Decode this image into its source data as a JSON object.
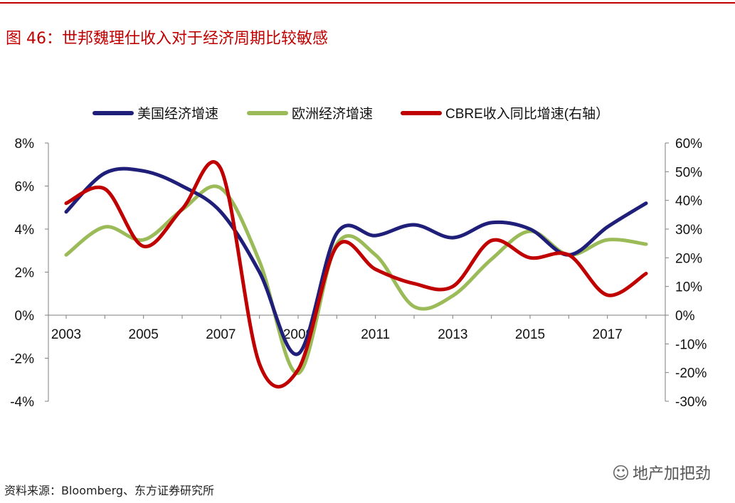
{
  "figure": {
    "title": "图 46：世邦魏理仕收入对于经济周期比较敏感",
    "source": "资料来源：Bloomberg、东方证券研究所",
    "watermark": "地产加把劲",
    "watermark_icon": "wechat-icon",
    "accent_color": "#c00000"
  },
  "chart_data": {
    "type": "line",
    "title": "",
    "xlabel": "",
    "ylabel": "",
    "x_ticks": [
      "2003",
      "2005",
      "2007",
      "2009",
      "2011",
      "2013",
      "2015",
      "2017"
    ],
    "xlim": [
      2003,
      2018
    ],
    "y_left": {
      "ylim": [
        -4,
        8
      ],
      "ticks": [
        "8%",
        "6%",
        "4%",
        "2%",
        "0%",
        "-2%",
        "-4%"
      ]
    },
    "y_right": {
      "ylim": [
        -30,
        60
      ],
      "ticks": [
        "60%",
        "50%",
        "40%",
        "30%",
        "20%",
        "10%",
        "0%",
        "-10%",
        "-20%",
        "-30%"
      ]
    },
    "grid": false,
    "legend_position": "top",
    "series": [
      {
        "name": "美国经济增速",
        "axis": "left",
        "color": "#1f1f7a",
        "x": [
          2003,
          2004,
          2005,
          2006,
          2007,
          2008,
          2009,
          2010,
          2011,
          2012,
          2013,
          2014,
          2015,
          2016,
          2017,
          2018
        ],
        "values": [
          4.8,
          6.6,
          6.7,
          6.0,
          4.8,
          2.0,
          -1.8,
          3.8,
          3.7,
          4.2,
          3.6,
          4.3,
          4.0,
          2.8,
          4.1,
          5.2
        ]
      },
      {
        "name": "欧洲经济增速",
        "axis": "left",
        "color": "#9bbb59",
        "x": [
          2003,
          2004,
          2005,
          2006,
          2007,
          2008,
          2009,
          2010,
          2011,
          2012,
          2013,
          2014,
          2015,
          2016,
          2017,
          2018
        ],
        "values": [
          2.8,
          4.1,
          3.5,
          4.9,
          5.9,
          2.5,
          -2.7,
          3.3,
          2.8,
          0.4,
          0.9,
          2.6,
          3.9,
          2.8,
          3.5,
          3.3
        ]
      },
      {
        "name": "CBRE收入同比增速(右轴）",
        "axis": "right",
        "color": "#c00000",
        "x": [
          2003,
          2004,
          2005,
          2006,
          2007,
          2008,
          2009,
          2010,
          2011,
          2012,
          2013,
          2014,
          2015,
          2016,
          2017,
          2018
        ],
        "values": [
          39,
          44,
          24,
          37,
          51,
          -17,
          -19,
          24,
          16,
          11,
          10,
          26,
          20,
          21,
          7,
          14.5
        ]
      }
    ]
  }
}
